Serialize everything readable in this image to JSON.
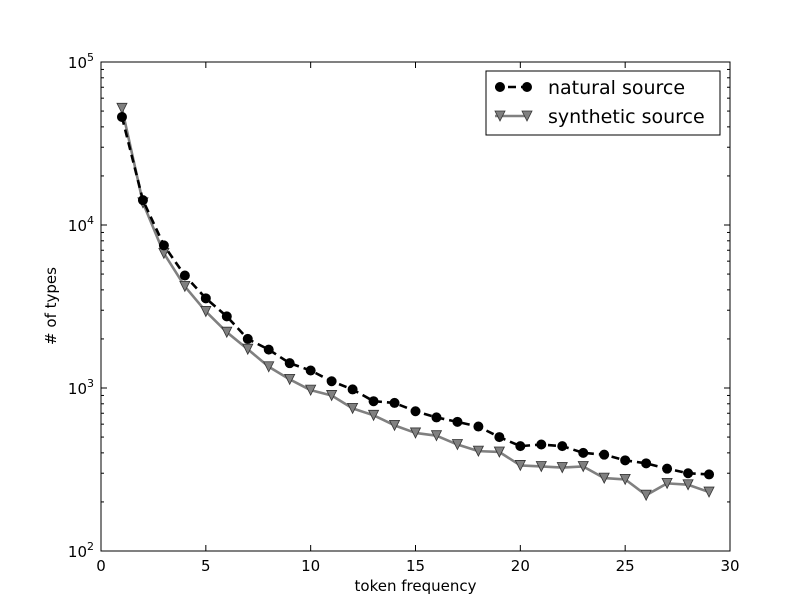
{
  "chart_data": {
    "type": "line",
    "title": "",
    "xlabel": "token frequency",
    "ylabel": "# of types",
    "xlim": [
      0,
      30
    ],
    "ylim": [
      100,
      100000
    ],
    "yscale": "log",
    "grid": false,
    "legend_position": "top-right",
    "x_ticks": [
      0,
      5,
      10,
      15,
      20,
      25,
      30
    ],
    "y_ticks": [
      100,
      1000,
      10000,
      100000
    ],
    "y_tick_labels": [
      {
        "base": "10",
        "exp": "2"
      },
      {
        "base": "10",
        "exp": "3"
      },
      {
        "base": "10",
        "exp": "4"
      },
      {
        "base": "10",
        "exp": "5"
      }
    ],
    "series": [
      {
        "name": "natural source",
        "color": "#000000",
        "line_style": "dashed",
        "marker": "circle",
        "x": [
          1,
          2,
          3,
          4,
          5,
          6,
          7,
          8,
          9,
          10,
          11,
          12,
          13,
          14,
          15,
          16,
          17,
          18,
          19,
          20,
          21,
          22,
          23,
          24,
          25,
          26,
          27,
          28,
          29
        ],
        "values": [
          46000,
          14200,
          7500,
          4900,
          3550,
          2750,
          2000,
          1720,
          1420,
          1280,
          1100,
          980,
          830,
          810,
          720,
          660,
          620,
          580,
          500,
          440,
          450,
          440,
          400,
          390,
          360,
          345,
          320,
          300,
          295
        ]
      },
      {
        "name": "synthetic source",
        "color": "#808080",
        "line_style": "solid",
        "marker": "triangle-down",
        "x": [
          1,
          2,
          3,
          4,
          5,
          6,
          7,
          8,
          9,
          10,
          11,
          12,
          13,
          14,
          15,
          16,
          17,
          18,
          19,
          20,
          21,
          22,
          23,
          24,
          25,
          26,
          27,
          28,
          29
        ],
        "values": [
          52000,
          13700,
          6700,
          4200,
          2950,
          2200,
          1730,
          1350,
          1130,
          970,
          900,
          750,
          680,
          590,
          530,
          510,
          450,
          410,
          405,
          335,
          330,
          325,
          330,
          280,
          275,
          220,
          260,
          255,
          230
        ]
      }
    ]
  }
}
